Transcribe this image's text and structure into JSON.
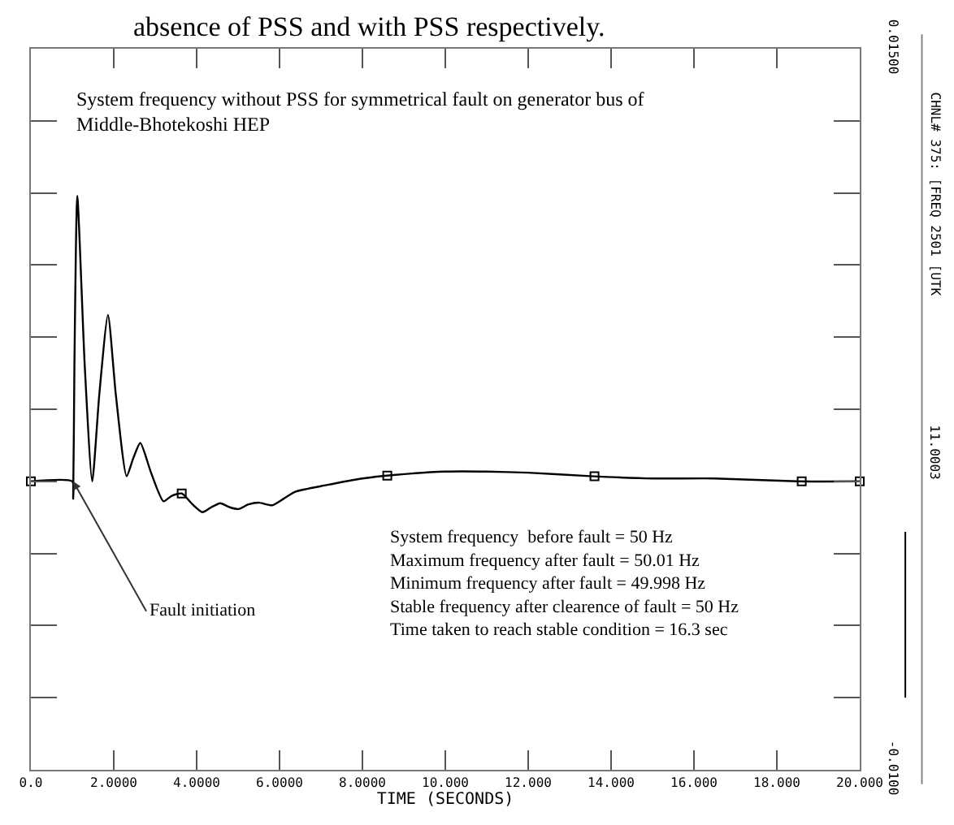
{
  "chart_data": {
    "type": "line",
    "title": "System frequency without PSS for symmetrical fault on generator bus of Middle-Bhotekoshi HEP",
    "xlabel": "TIME (SECONDS)",
    "series": [
      {
        "name": "CHNL# 375: [FREQ 2501 [UTK",
        "color": "#000000",
        "x": [
          0,
          1.0,
          1.02,
          1.05,
          1.12,
          1.3,
          1.48,
          1.65,
          1.86,
          2.05,
          2.31,
          2.47,
          2.64,
          2.9,
          3.2,
          3.4,
          3.64,
          3.9,
          4.14,
          4.35,
          4.57,
          4.8,
          5.01,
          5.25,
          5.51,
          5.82,
          6.1,
          6.38,
          7.13,
          8.0,
          8.75,
          10.0,
          11.0,
          12.0,
          13.5,
          15.0,
          16.5,
          18.5,
          20.0
        ],
        "values": [
          0,
          0,
          -0.0006,
          0.004,
          0.0099,
          0.004,
          0.0,
          0.003,
          0.00577,
          0.003,
          0.00018,
          0.0008,
          0.00133,
          0.0003,
          -0.00069,
          -0.0005,
          -0.00042,
          -0.0008,
          -0.00107,
          -0.0009,
          -0.00076,
          -0.0009,
          -0.00096,
          -0.0008,
          -0.00074,
          -0.00083,
          -0.0006,
          -0.00036,
          -0.00013,
          0.0001,
          0.00022,
          0.00034,
          0.00034,
          0.0003,
          0.00018,
          0.0001,
          0.0001,
          0.0,
          0
        ]
      },
      {
        "type": "scatter",
        "marker": "square",
        "color": "#000000",
        "x": [
          0,
          3.64,
          8.6,
          13.6,
          18.6,
          20.0
        ],
        "values": [
          0,
          -0.00042,
          0.0002,
          0.00018,
          0.0,
          0
        ]
      }
    ],
    "legend": "right",
    "xlim": [
      0,
      20
    ],
    "xticks": [
      {
        "value": 0,
        "label": "0.0"
      },
      {
        "value": 2,
        "label": "2.0000"
      },
      {
        "value": 4,
        "label": "4.0000"
      },
      {
        "value": 6,
        "label": "6.0000"
      },
      {
        "value": 8,
        "label": "8.0000"
      },
      {
        "value": 10,
        "label": "10.000"
      },
      {
        "value": 12,
        "label": "12.000"
      },
      {
        "value": 14,
        "label": "14.000"
      },
      {
        "value": 16,
        "label": "16.000"
      },
      {
        "value": 18,
        "label": "18.000"
      },
      {
        "value": 20,
        "label": "20.000"
      }
    ],
    "ylim": [
      -0.01,
      0.015
    ],
    "yticks": [
      {
        "value": -0.01,
        "label": "-0.0100"
      },
      {
        "value": -0.0075,
        "label": null
      },
      {
        "value": -0.005,
        "label": null
      },
      {
        "value": -0.0025,
        "label": null
      },
      {
        "value": 0,
        "label": null
      },
      {
        "value": 0.0025,
        "label": null
      },
      {
        "value": 0.005,
        "label": null
      },
      {
        "value": 0.0075,
        "label": null
      },
      {
        "value": 0.01,
        "label": null
      },
      {
        "value": 0.0125,
        "label": null
      },
      {
        "value": 0.015,
        "label": "0.01500"
      }
    ],
    "line_style": "solid",
    "marker": "none",
    "annotations": [
      "absence of PSS and with PSS respectively.",
      {
        "text": "Fault initiation",
        "x": 1.02,
        "y": 0
      },
      "System frequency  before fault = 50 Hz",
      "Maximum frequency after fault = 50.01 Hz",
      "Minimum frequency after fault = 49.998 Hz",
      "Stable frequency after clearence of fault = 50 Hz",
      "Time taken to reach stable condition = 16.3 sec",
      "11.0003"
    ]
  }
}
